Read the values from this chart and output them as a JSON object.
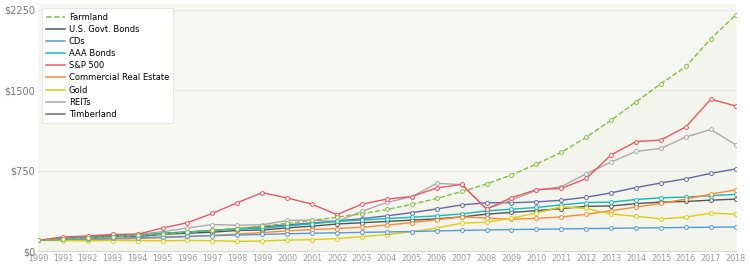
{
  "years": [
    1990,
    1991,
    1992,
    1993,
    1994,
    1995,
    1996,
    1997,
    1998,
    1999,
    2000,
    2001,
    2002,
    2003,
    2004,
    2005,
    2006,
    2007,
    2008,
    2009,
    2010,
    2011,
    2012,
    2013,
    2014,
    2015,
    2016,
    2017,
    2018
  ],
  "farmland": [
    100,
    110,
    120,
    132,
    145,
    160,
    175,
    192,
    210,
    232,
    258,
    285,
    315,
    348,
    388,
    435,
    490,
    555,
    625,
    710,
    810,
    920,
    1060,
    1220,
    1390,
    1560,
    1720,
    1980,
    2200
  ],
  "us_govt_bonds": [
    100,
    116,
    128,
    140,
    136,
    156,
    166,
    176,
    192,
    196,
    216,
    232,
    252,
    264,
    276,
    288,
    300,
    318,
    344,
    360,
    376,
    396,
    416,
    420,
    442,
    456,
    462,
    474,
    484
  ],
  "cds": [
    100,
    108,
    114,
    119,
    125,
    131,
    137,
    143,
    149,
    155,
    161,
    166,
    170,
    174,
    178,
    182,
    187,
    192,
    197,
    200,
    203,
    206,
    209,
    212,
    215,
    217,
    220,
    222,
    225
  ],
  "aaa_bonds": [
    100,
    118,
    132,
    148,
    144,
    166,
    178,
    190,
    208,
    212,
    234,
    254,
    276,
    290,
    302,
    315,
    328,
    346,
    374,
    390,
    406,
    430,
    452,
    456,
    480,
    496,
    503,
    516,
    528
  ],
  "sp500": [
    100,
    131,
    141,
    155,
    157,
    215,
    264,
    351,
    451,
    544,
    495,
    436,
    340,
    437,
    484,
    508,
    588,
    621,
    392,
    497,
    572,
    584,
    676,
    896,
    1020,
    1034,
    1158,
    1414,
    1352
  ],
  "commercial_re": [
    100,
    106,
    108,
    112,
    116,
    124,
    134,
    146,
    158,
    172,
    188,
    200,
    210,
    222,
    242,
    265,
    292,
    318,
    308,
    296,
    305,
    318,
    342,
    376,
    410,
    445,
    484,
    530,
    570
  ],
  "gold": [
    100,
    97,
    96,
    98,
    97,
    96,
    99,
    97,
    90,
    93,
    103,
    106,
    116,
    134,
    153,
    180,
    214,
    260,
    268,
    306,
    354,
    412,
    397,
    344,
    324,
    300,
    316,
    354,
    343
  ],
  "reits": [
    100,
    117,
    128,
    150,
    156,
    180,
    215,
    247,
    241,
    245,
    285,
    289,
    275,
    370,
    453,
    506,
    630,
    620,
    392,
    474,
    566,
    600,
    720,
    830,
    928,
    957,
    1062,
    1133,
    990
  ],
  "timberland": [
    100,
    112,
    124,
    138,
    150,
    163,
    178,
    193,
    209,
    226,
    244,
    261,
    280,
    302,
    328,
    358,
    392,
    430,
    450,
    450,
    458,
    473,
    502,
    542,
    592,
    634,
    674,
    724,
    765
  ],
  "bg_color": "#f7f7f2",
  "farmland_fill_color": "#e8eed8",
  "colors": {
    "farmland": "#88bb44",
    "us_govt_bonds": "#555555",
    "cds": "#5599dd",
    "aaa_bonds": "#11bbbb",
    "sp500": "#ee5566",
    "commercial_re": "#ff8833",
    "gold": "#ddcc11",
    "reits": "#aaaaaa",
    "timberland": "#6666aa"
  },
  "yticks": [
    0,
    750,
    1500,
    2250
  ],
  "ytick_labels": [
    "$0",
    "$750",
    "$1500",
    "$2250"
  ]
}
